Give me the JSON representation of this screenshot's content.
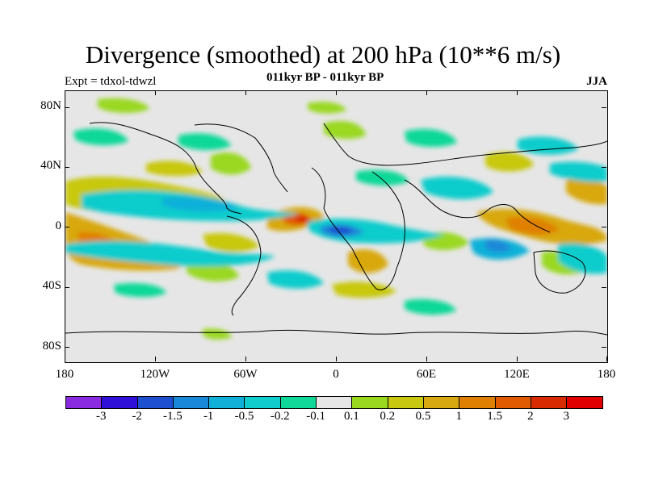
{
  "header": {
    "title": "Divergence (smoothed) at 200 hPa (10**6 m/s)",
    "subtitle_center": "011kyr BP - 011kyr BP",
    "subtitle_left": "Expt = tdxol-tdwzl",
    "subtitle_right": "JJA"
  },
  "axes": {
    "y_labels": [
      "80N",
      "40N",
      "0",
      "40S",
      "80S"
    ],
    "x_labels": [
      "180",
      "120W",
      "60W",
      "0",
      "60E",
      "120E",
      "180"
    ]
  },
  "colorbar": {
    "labels": [
      "-3",
      "-2",
      "-1.5",
      "-1",
      "-0.5",
      "-0.2",
      "-0.1",
      "0.1",
      "0.2",
      "0.5",
      "1",
      "1.5",
      "2",
      "3"
    ],
    "colors": [
      "#8a2be2",
      "#2f10d8",
      "#1e4fd0",
      "#1a88d8",
      "#10b0d8",
      "#10cccc",
      "#10d898",
      "#e6e6e6",
      "#9ad820",
      "#c8c810",
      "#d8a810",
      "#e08000",
      "#e05a00",
      "#d82c00",
      "#e00000"
    ]
  },
  "chart_data": {
    "type": "heatmap",
    "title": "Divergence (smoothed) at 200 hPa (10**6 m/s)",
    "season": "JJA",
    "x_range": [
      -180,
      180
    ],
    "y_range": [
      -90,
      90
    ],
    "levels": [
      -3,
      -2,
      -1.5,
      -1,
      -0.5,
      -0.2,
      -0.1,
      0.1,
      0.2,
      0.5,
      1,
      1.5,
      2,
      3
    ]
  }
}
